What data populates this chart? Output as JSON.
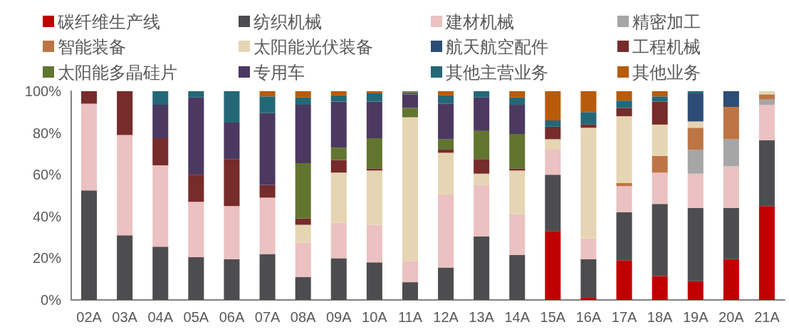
{
  "chart_data": {
    "type": "bar",
    "stacked": true,
    "categories": [
      "02A",
      "03A",
      "04A",
      "05A",
      "06A",
      "07A",
      "08A",
      "09A",
      "10A",
      "11A",
      "12A",
      "13A",
      "14A",
      "15A",
      "16A",
      "17A",
      "18A",
      "19A",
      "20A",
      "21A"
    ],
    "ylim": [
      0,
      100
    ],
    "yticks": [
      {
        "value": 0,
        "label": "0%"
      },
      {
        "value": 20,
        "label": "20%"
      },
      {
        "value": 40,
        "label": "40%"
      },
      {
        "value": 60,
        "label": "60%"
      },
      {
        "value": 80,
        "label": "80%"
      },
      {
        "value": 100,
        "label": "100%"
      }
    ],
    "grid": false,
    "legend": "top",
    "series": [
      {
        "name": "碳纤维生产线",
        "color": "#c00000",
        "values": [
          null,
          null,
          null,
          null,
          null,
          null,
          null,
          null,
          null,
          null,
          null,
          null,
          null,
          33,
          1,
          19,
          11.5,
          9,
          19.5,
          45
        ]
      },
      {
        "name": "纺织机械",
        "color": "#4d4d4f",
        "values": [
          52.5,
          31,
          25.5,
          20.5,
          19.5,
          22,
          11,
          20,
          18,
          8.5,
          15.5,
          30.5,
          21.5,
          27,
          18.5,
          23,
          34.5,
          35,
          24.5,
          31.5
        ]
      },
      {
        "name": "建材机械",
        "color": "#ebc1c1",
        "values": [
          41.5,
          48,
          39,
          26.5,
          25.5,
          27,
          16.5,
          17,
          18,
          10,
          35,
          24.5,
          19.5,
          12,
          10,
          12.5,
          15,
          16.5,
          20,
          17
        ]
      },
      {
        "name": "精密加工",
        "color": "#a6a6a6",
        "values": [
          null,
          null,
          null,
          null,
          null,
          null,
          null,
          null,
          null,
          null,
          null,
          null,
          null,
          null,
          null,
          null,
          null,
          11.5,
          13,
          2.5
        ]
      },
      {
        "name": "智能装备",
        "color": "#bd7545",
        "values": [
          null,
          null,
          null,
          null,
          null,
          null,
          null,
          null,
          null,
          null,
          null,
          null,
          null,
          null,
          null,
          1.5,
          8,
          10.5,
          15.5,
          2.5
        ]
      },
      {
        "name": "太阳能光伏装备",
        "color": "#e6d5b3",
        "values": [
          null,
          null,
          null,
          null,
          null,
          null,
          8.5,
          24,
          26,
          69,
          20,
          5.5,
          21,
          5,
          53,
          32,
          15,
          3,
          null,
          1.5
        ]
      },
      {
        "name": "航天航空配件",
        "color": "#2c4d75",
        "values": [
          null,
          null,
          null,
          null,
          null,
          null,
          null,
          null,
          null,
          null,
          null,
          null,
          null,
          null,
          null,
          null,
          null,
          13.5,
          7.5,
          null
        ]
      },
      {
        "name": "工程机械",
        "color": "#772b2a",
        "values": [
          6,
          21,
          13,
          13,
          22.5,
          6,
          3,
          6,
          1,
          null,
          1.5,
          7,
          1,
          6,
          1.5,
          4,
          11,
          null,
          null,
          null
        ]
      },
      {
        "name": "太阳能多晶硅片",
        "color": "#62752f",
        "values": [
          null,
          null,
          null,
          null,
          null,
          null,
          26.5,
          6,
          14.5,
          4.5,
          5,
          13.5,
          16.5,
          null,
          null,
          null,
          null,
          null,
          null,
          null
        ]
      },
      {
        "name": "专用车",
        "color": "#4b3961",
        "values": [
          null,
          null,
          16,
          37,
          17.5,
          34.5,
          28,
          22,
          17.5,
          6.5,
          17,
          16,
          14,
          null,
          null,
          null,
          null,
          null,
          null,
          null
        ]
      },
      {
        "name": "其他主营业务",
        "color": "#246877",
        "values": [
          null,
          null,
          6.5,
          3,
          15,
          8,
          3.5,
          3,
          4,
          1,
          4,
          3,
          3.5,
          3,
          6,
          3.5,
          2.5,
          1,
          null,
          null
        ]
      },
      {
        "name": "其他业务",
        "color": "#b85b0a",
        "values": [
          null,
          null,
          null,
          null,
          null,
          2.5,
          3,
          2,
          1,
          0.5,
          2,
          null,
          3,
          14,
          10,
          4.5,
          2.5,
          null,
          null,
          null
        ]
      }
    ]
  }
}
